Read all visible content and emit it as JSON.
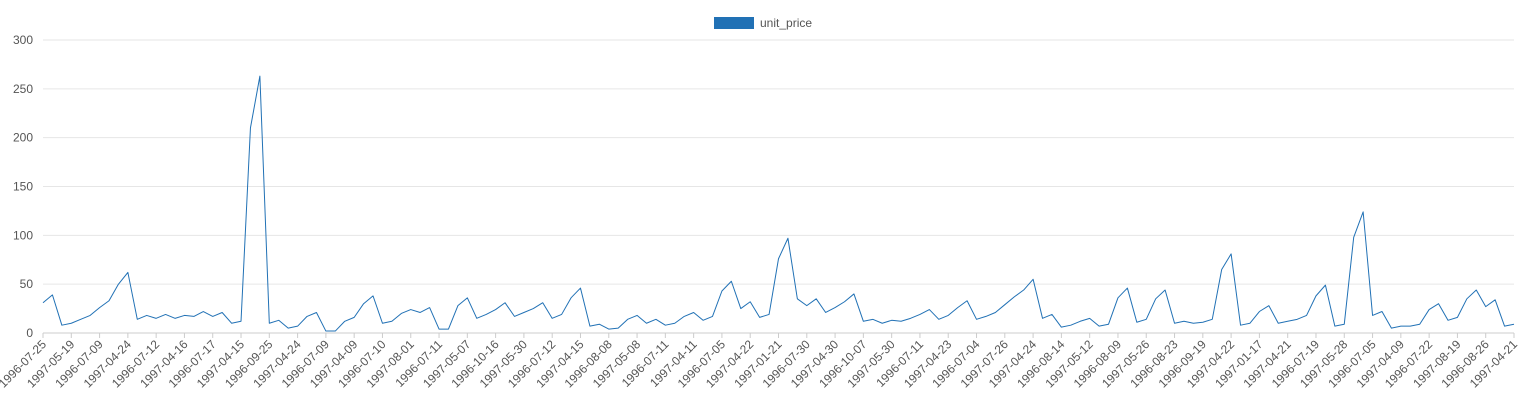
{
  "chart_data": {
    "type": "line",
    "title": "",
    "xlabel": "",
    "ylabel": "",
    "ylim": [
      0,
      300
    ],
    "yticks": [
      0,
      50,
      100,
      150,
      200,
      250,
      300
    ],
    "grid": true,
    "legend_position": "top-center",
    "series": [
      {
        "name": "unit_price",
        "color": "#2171b5",
        "values": [
          31,
          39,
          8,
          10,
          14,
          18,
          26,
          33,
          50,
          62,
          14,
          18,
          15,
          19,
          15,
          18,
          17,
          22,
          17,
          21,
          10,
          12,
          210,
          263,
          10,
          13,
          5,
          7,
          17,
          21,
          2,
          2,
          12,
          16,
          30,
          38,
          10,
          12,
          20,
          24,
          21,
          26,
          4,
          4,
          28,
          36,
          15,
          19,
          24,
          31,
          17,
          21,
          25,
          31,
          15,
          19,
          36,
          46,
          7,
          9,
          4,
          5,
          14,
          18,
          10,
          14,
          8,
          10,
          17,
          21,
          13,
          17,
          43,
          53,
          25,
          32,
          16,
          19,
          76,
          97,
          35,
          28,
          35,
          21,
          26,
          32,
          40,
          12,
          14,
          10,
          13,
          12,
          15,
          19,
          24,
          14,
          18,
          26,
          33,
          14,
          17,
          21,
          29,
          37,
          44,
          55,
          15,
          19,
          6,
          8,
          12,
          15,
          7,
          9,
          36,
          46,
          11,
          14,
          35,
          44,
          10,
          12,
          10,
          11,
          14,
          65,
          81,
          8,
          10,
          22,
          28,
          10,
          12,
          14,
          18,
          38,
          49,
          7,
          9,
          98,
          124,
          18,
          22,
          5,
          7,
          7,
          9,
          24,
          30,
          13,
          16,
          35,
          44,
          27,
          34,
          7,
          9
        ]
      }
    ],
    "x_tick_labels": [
      "1996-07-25",
      "1997-05-19",
      "1996-07-09",
      "1997-04-24",
      "1996-07-12",
      "1997-04-16",
      "1996-07-17",
      "1997-04-15",
      "1996-09-25",
      "1997-04-24",
      "1996-07-09",
      "1997-04-09",
      "1996-07-10",
      "1997-08-01",
      "1996-07-11",
      "1997-05-07",
      "1996-10-16",
      "1997-05-30",
      "1996-07-12",
      "1997-04-15",
      "1996-08-08",
      "1997-05-08",
      "1996-07-11",
      "1997-04-11",
      "1996-07-05",
      "1997-04-22",
      "1997-01-21",
      "1996-07-30",
      "1997-04-30",
      "1996-10-07",
      "1997-05-30",
      "1996-07-11",
      "1997-04-23",
      "1996-07-04",
      "1997-07-26",
      "1997-04-24",
      "1996-08-14",
      "1997-05-12",
      "1996-08-09",
      "1997-05-26",
      "1996-08-23",
      "1996-09-19",
      "1997-04-22",
      "1997-01-17",
      "1997-04-21",
      "1996-07-19",
      "1997-05-28",
      "1996-07-05",
      "1997-04-09",
      "1996-07-22",
      "1997-08-19",
      "1996-08-26",
      "1997-04-21"
    ]
  }
}
